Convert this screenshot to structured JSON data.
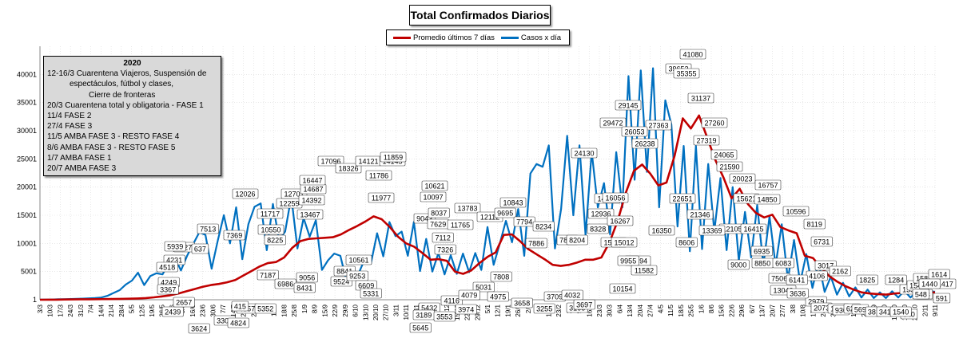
{
  "chart_data": {
    "type": "line",
    "title": "Total  Confirmados  Diarios",
    "xlabel": "",
    "ylabel": "",
    "ylim": [
      1,
      45000
    ],
    "yticks": [
      1,
      5001,
      10001,
      15001,
      20001,
      25001,
      30001,
      35001,
      40001
    ],
    "x_tick_labels": [
      "3/3",
      "10/3",
      "17/3",
      "24/3",
      "31/3",
      "7/4",
      "14/4",
      "21/4",
      "28/4",
      "5/5",
      "12/5",
      "19/5",
      "26/5",
      "2/6",
      "9/6",
      "16/6",
      "23/6",
      "30/6",
      "7/7",
      "14/7",
      "21/7",
      "28/7",
      "4/8",
      "11/8",
      "18/8",
      "25/8",
      "1/9",
      "8/9",
      "15/9",
      "22/9",
      "29/9",
      "6/10",
      "13/10",
      "20/10",
      "27/10",
      "3/11",
      "10/11",
      "17/11",
      "24/11",
      "1/12",
      "8/12",
      "15/12",
      "22/12",
      "29/12",
      "5/1",
      "12/1",
      "19/1",
      "26/1",
      "2/2",
      "9/2",
      "16/2",
      "23/2",
      "2/3",
      "9/3",
      "16/3",
      "23/3",
      "30/3",
      "6/4",
      "13/4",
      "20/4",
      "27/4",
      "4/5",
      "11/5",
      "18/5",
      "25/5",
      "1/6",
      "8/6",
      "15/6",
      "22/6",
      "29/6",
      "6/7",
      "13/7",
      "20/7",
      "27/7",
      "3/8",
      "10/8",
      "17/8",
      "24/8",
      "31/8",
      "7/9",
      "14/9",
      "21/9",
      "28/9",
      "5/10",
      "12/10",
      "19/10",
      "26/10",
      "2/11",
      "9/11"
    ],
    "series": [
      {
        "name": "Promedio últimos 7 días",
        "color": "#c00000",
        "values": [
          5,
          10,
          20,
          40,
          60,
          80,
          90,
          100,
          110,
          130,
          150,
          180,
          230,
          300,
          420,
          600,
          800,
          1100,
          1500,
          1900,
          2300,
          2600,
          2800,
          3100,
          3500,
          4300,
          5100,
          5900,
          6500,
          6700,
          7500,
          9200,
          10400,
          10800,
          10900,
          11000,
          11100,
          11600,
          12400,
          13100,
          13900,
          14800,
          14300,
          12900,
          11200,
          10000,
          9400,
          8300,
          7100,
          7200,
          6900,
          5000,
          4600,
          5200,
          6500,
          7600,
          8400,
          11500,
          11600,
          10400,
          9000,
          8100,
          7200,
          6200,
          6000,
          6200,
          6600,
          7100,
          7100,
          7500,
          10200,
          14000,
          19000,
          22900,
          24000,
          22400,
          20300,
          20800,
          25600,
          32200,
          30400,
          32700,
          28800,
          24800,
          21700,
          18000,
          19700,
          17000,
          15400,
          14600,
          15100,
          12900,
          12300,
          11800,
          7800,
          7400,
          5700,
          4200,
          3200,
          2400,
          1800,
          1300,
          1100,
          1000,
          900,
          1100,
          1200,
          1300,
          1300,
          1300,
          1300
        ]
      },
      {
        "name": "Casos x día",
        "color": "#0070c0",
        "values": [
          10,
          20,
          50,
          80,
          100,
          130,
          150,
          200,
          250,
          300,
          400,
          700,
          1200,
          1700,
          2700,
          3400,
          4800,
          2600,
          4200,
          4700,
          4500,
          6500,
          7500,
          5200,
          7800,
          9900,
          12000,
          11500,
          5500,
          10500,
          15000,
          10000,
          16400,
          7200,
          13400,
          16500,
          17100,
          8800,
          17000,
          10600,
          12100,
          18300,
          9100,
          14500,
          11200,
          14100,
          5300,
          7000,
          8200,
          7800,
          3300,
          4100,
          4700,
          7300,
          6500,
          11800,
          7700,
          13800,
          11300,
          12100,
          7800,
          13800,
          5100,
          10800,
          5000,
          8300,
          4500,
          7900,
          4600,
          8200,
          4900,
          8300,
          5300,
          12900,
          6200,
          9900,
          14000,
          10200,
          16100,
          7800,
          22400,
          24100,
          23600,
          27400,
          9100,
          16100,
          29100,
          15000,
          27400,
          11400,
          26300,
          16400,
          20700,
          11600,
          26200,
          16400,
          39700,
          21300,
          40700,
          22700,
          41100,
          16400,
          35400,
          31100,
          13000,
          27300,
          8600,
          27300,
          9000,
          24100,
          12100,
          21600,
          8800,
          20000,
          6900,
          15600,
          7500,
          16800,
          6100,
          14800,
          6100,
          13400,
          3600,
          10600,
          3000,
          8100,
          2100,
          6700,
          1400,
          4100,
          900,
          3000,
          600,
          2200,
          400,
          1800,
          300,
          1300,
          300,
          1500,
          400,
          1600,
          400,
          1400,
          500,
          1600,
          1400
        ]
      }
    ]
  },
  "annotations": [
    "39652",
    "41080",
    "35355",
    "31137",
    "29472",
    "29145",
    "27363",
    "27260",
    "27319",
    "26053",
    "26238",
    "24130",
    "24065",
    "22651",
    "21590",
    "21346",
    "20023",
    "16757",
    "15621",
    "14850",
    "17096",
    "18326",
    "14121",
    "14145",
    "11786",
    "11859",
    "11977",
    "12026",
    "12259",
    "12701",
    "14392",
    "14687",
    "16447",
    "11717",
    "10550",
    "8225",
    "7369",
    "7513",
    "6127",
    "4231",
    "5939",
    "637",
    "4518",
    "4249",
    "3367",
    "2439",
    "2657",
    "3624",
    "3305",
    "4824",
    "4557",
    "5352",
    "415",
    "7187",
    "6986",
    "9056",
    "8431",
    "8841",
    "9524",
    "10561",
    "9253",
    "6609",
    "5331",
    "13467",
    "10621",
    "10097",
    "9043",
    "8037",
    "7629",
    "7112",
    "7326",
    "11765",
    "13783",
    "12112",
    "10843",
    "9695",
    "7794",
    "8234",
    "7886",
    "7891",
    "8204",
    "8328",
    "12936",
    "14033",
    "16056",
    "16267",
    "15261",
    "15012",
    "11394",
    "16350",
    "11582",
    "9955",
    "10154",
    "7808",
    "5031",
    "4975",
    "3658",
    "3255",
    "3709",
    "3168",
    "4032",
    "3697",
    "4116",
    "4079",
    "5645",
    "5432",
    "3189",
    "3553",
    "3974",
    "8606",
    "9000",
    "8850",
    "6935",
    "7506",
    "6083",
    "13043",
    "12105",
    "16415",
    "13369",
    "10596",
    "8119",
    "6731",
    "4106",
    "3017",
    "2162",
    "1825",
    "1284",
    "1358",
    "1546",
    "1589",
    "1614",
    "1417",
    "1440",
    "591",
    "593",
    "548",
    "540",
    "2979",
    "2073",
    "1390",
    "930",
    "622",
    "569",
    "381",
    "341",
    "3636",
    "6141",
    "1540"
  ],
  "info": {
    "year": "2020",
    "lines": [
      "12-16/3  Cuarentena Viajeros, Suspensión de",
      "espectáculos, fútbol y clases,",
      "Cierre de fronteras",
      "20/3  Cuarentena total y obligatoria - FASE 1",
      "11/4  FASE 2",
      "27/4  FASE 3",
      "11/5  AMBA FASE 3  -  RESTO FASE 4",
      "8/6  AMBA FASE 3  -  RESTO FASE 5",
      "1/7  AMBA FASE 1",
      "20/7  AMBA FASE 3"
    ]
  },
  "colors": {
    "avg": "#c00000",
    "daily": "#0070c0"
  }
}
